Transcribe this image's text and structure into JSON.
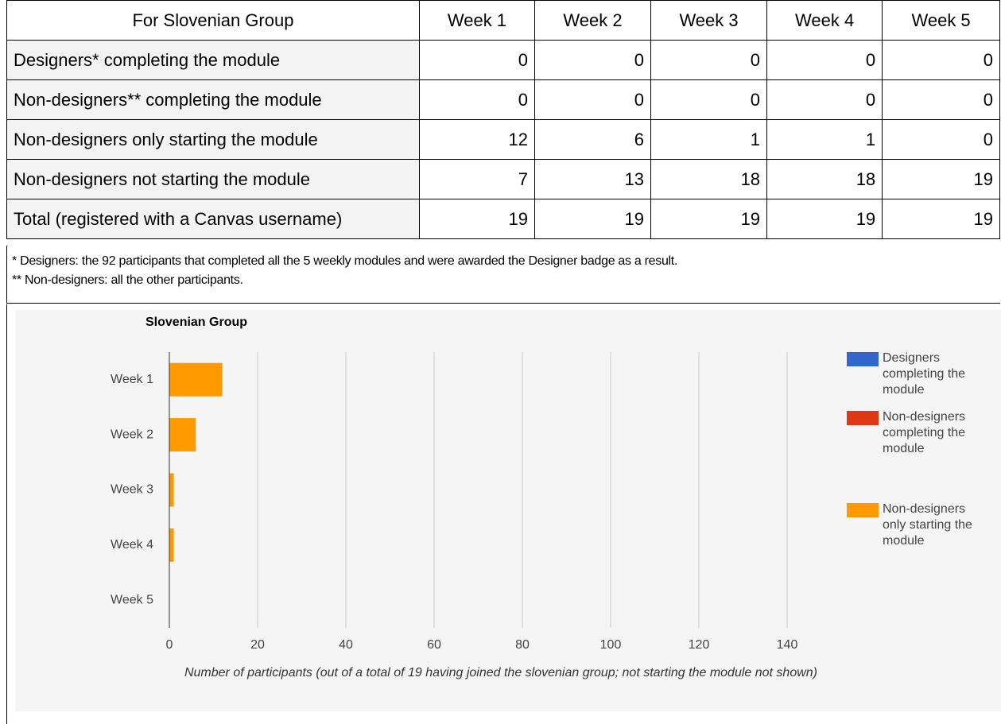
{
  "table": {
    "header": [
      "For Slovenian Group",
      "Week 1",
      "Week 2",
      "Week 3",
      "Week 4",
      "Week 5"
    ],
    "rows": [
      [
        "Designers* completing the module",
        0,
        0,
        0,
        0,
        0
      ],
      [
        "Non-designers** completing the module",
        0,
        0,
        0,
        0,
        0
      ],
      [
        "Non-designers only starting the module",
        12,
        6,
        1,
        1,
        0
      ],
      [
        "Non-designers not starting the module",
        7,
        13,
        18,
        18,
        19
      ],
      [
        "Total (registered with a Canvas username)",
        19,
        19,
        19,
        19,
        19
      ]
    ]
  },
  "footnotes": [
    "* Designers: the 92 participants that completed all the 5 weekly modules and were awarded the Designer badge as a result.",
    "** Non-designers: all the other participants."
  ],
  "chart_data": {
    "type": "stacked_hbar",
    "title": "Slovenian Group",
    "categories": [
      "Week 1",
      "Week 2",
      "Week 3",
      "Week 4",
      "Week 5"
    ],
    "series": [
      {
        "name": "Designers completing the module",
        "color": "#3366cc",
        "values": [
          0,
          0,
          0,
          0,
          0
        ]
      },
      {
        "name": "Non-designers completing the module",
        "color": "#dc3912",
        "values": [
          0,
          0,
          0,
          0,
          0
        ]
      },
      {
        "name": "Non-designers only starting the module",
        "color": "#ff9900",
        "values": [
          12,
          6,
          1,
          1,
          0
        ]
      }
    ],
    "xlim": [
      0,
      140
    ],
    "xticks": [
      0,
      20,
      40,
      60,
      80,
      100,
      120,
      140
    ],
    "grid": true,
    "legend": "right",
    "x_label": "Number of participants (out of a total of 19 having joined the slovenian group; not starting the module not shown)"
  }
}
